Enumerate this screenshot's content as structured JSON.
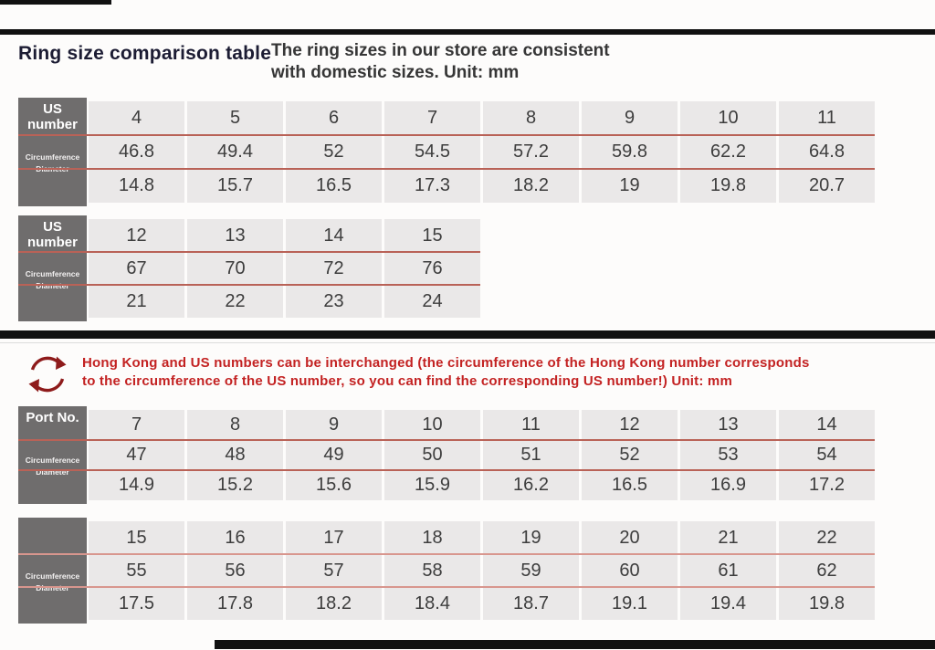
{
  "page": {
    "title": "Ring size comparison table",
    "subtitle_lines": [
      "The ring sizes in our store are consistent",
      "with domestic sizes. Unit: mm"
    ]
  },
  "notice": {
    "icon": "swap-circular-arrows-icon",
    "lines": [
      "Hong Kong and US numbers can be interchanged (the circumference of the Hong Kong number corresponds",
      "to the circumference of the US number, so you can find the corresponding US number!) Unit: mm"
    ]
  },
  "tables": [
    {
      "name": "us-size-table-1",
      "corner_label": "US number",
      "row_labels": [
        "Circumference",
        "Diameter"
      ],
      "columns": [
        "4",
        "5",
        "6",
        "7",
        "8",
        "9",
        "10",
        "11"
      ],
      "circumference": [
        "46.8",
        "49.4",
        "52",
        "54.5",
        "57.2",
        "59.8",
        "62.2",
        "64.8"
      ],
      "diameter": [
        "14.8",
        "15.7",
        "16.5",
        "17.3",
        "18.2",
        "19",
        "19.8",
        "20.7"
      ]
    },
    {
      "name": "us-size-table-2",
      "corner_label": "US number",
      "row_labels": [
        "Circumference",
        "Diameter"
      ],
      "columns": [
        "12",
        "13",
        "14",
        "15"
      ],
      "circumference": [
        "67",
        "70",
        "72",
        "76"
      ],
      "diameter": [
        "21",
        "22",
        "23",
        "24"
      ]
    },
    {
      "name": "hk-size-table-1",
      "corner_label": "Port No.",
      "row_labels": [
        "Circumference",
        "Diameter"
      ],
      "columns": [
        "7",
        "8",
        "9",
        "10",
        "11",
        "12",
        "13",
        "14"
      ],
      "circumference": [
        "47",
        "48",
        "49",
        "50",
        "51",
        "52",
        "53",
        "54"
      ],
      "diameter": [
        "14.9",
        "15.2",
        "15.6",
        "15.9",
        "16.2",
        "16.5",
        "16.9",
        "17.2"
      ]
    },
    {
      "name": "hk-size-table-2",
      "corner_label": "",
      "row_labels": [
        "Circumference",
        "Diameter"
      ],
      "columns": [
        "15",
        "16",
        "17",
        "18",
        "19",
        "20",
        "21",
        "22"
      ],
      "circumference": [
        "55",
        "56",
        "57",
        "58",
        "59",
        "60",
        "61",
        "62"
      ],
      "diameter": [
        "17.5",
        "17.8",
        "18.2",
        "18.4",
        "18.7",
        "19.1",
        "19.4",
        "19.8"
      ]
    }
  ],
  "colors": {
    "accent_red_text": "#c32222",
    "icon_red": "#8e1b1b",
    "row_divider_red": "#b96257",
    "cell_background": "#eae8e8",
    "corner_header_background": "#6f6d6d",
    "rule_bar_black": "#111111"
  }
}
